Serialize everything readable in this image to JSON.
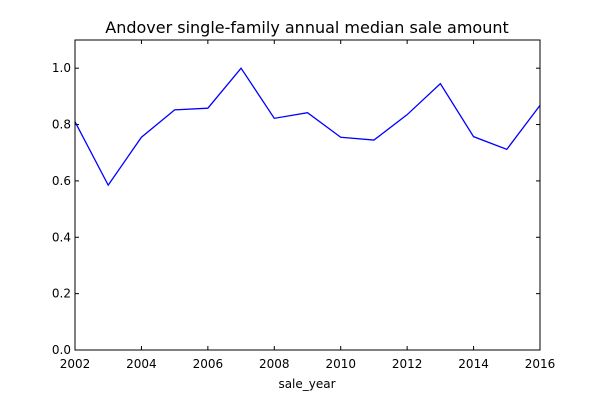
{
  "chart_data": {
    "type": "line",
    "title": "Andover single-family annual median sale amount",
    "xlabel": "sale_year",
    "ylabel": "",
    "xlim": [
      2002,
      2016
    ],
    "ylim": [
      0.0,
      1.1
    ],
    "xticks": [
      2002,
      2004,
      2006,
      2008,
      2010,
      2012,
      2014,
      2016
    ],
    "xtick_labels": [
      "2002",
      "2004",
      "2006",
      "2008",
      "2010",
      "2012",
      "2014",
      "2016"
    ],
    "yticks": [
      0.0,
      0.2,
      0.4,
      0.6,
      0.8,
      1.0
    ],
    "ytick_labels": [
      "0.0",
      "0.2",
      "0.4",
      "0.6",
      "0.8",
      "1.0"
    ],
    "grid": false,
    "legend": "none",
    "series": [
      {
        "color": "#0000ff",
        "x": [
          2002,
          2003,
          2004,
          2005,
          2006,
          2007,
          2008,
          2009,
          2010,
          2011,
          2012,
          2013,
          2014,
          2015,
          2016
        ],
        "y": [
          0.81,
          0.585,
          0.755,
          0.852,
          0.858,
          1.0,
          0.822,
          0.842,
          0.755,
          0.745,
          0.835,
          0.945,
          0.757,
          0.712,
          0.868
        ]
      }
    ]
  }
}
